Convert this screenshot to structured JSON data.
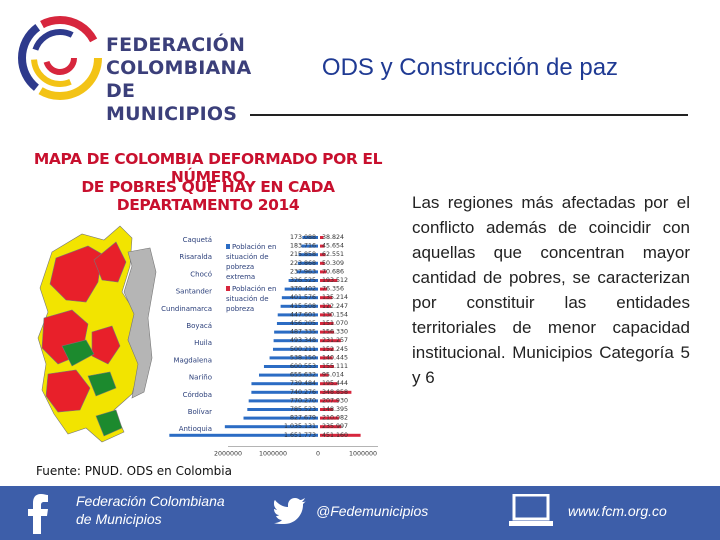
{
  "header": {
    "logo_lines": [
      "FEDERACIÓN",
      "COLOMBIANA",
      "DE MUNICIPIOS"
    ],
    "title": "ODS y Construcción de paz"
  },
  "figure": {
    "title_line1": "MAPA DE COLOMBIA DEFORMADO POR EL NÚMERO",
    "title_line2": "DE POBRES QUE HAY EN CADA DEPARTAMENTO 2014",
    "legend": {
      "poverty_label": "Población en situación de pobreza",
      "extreme_label": "Población en situación de pobreza extrema",
      "poverty_color": "#2b6cc4",
      "extreme_color": "#d7263d"
    },
    "departments": [
      "Caquetá",
      "Risaralda",
      "Chocó",
      "Santander",
      "Cundinamarca",
      "Boyacá",
      "Huila",
      "Magdalena",
      "Nariño",
      "Córdoba",
      "Bolívar",
      "Antioquia"
    ],
    "poverty_values": [
      "173.088",
      "183.716",
      "215.858",
      "223.868",
      "237.963",
      "326.525",
      "370.402",
      "401.576",
      "415.508",
      "447.601",
      "456.205",
      "487.335",
      "493.348",
      "500.211",
      "538.150",
      "600.553",
      "655.632",
      "739.484",
      "740.276",
      "770.270",
      "785.523",
      "827.679",
      "1.035.131",
      "1.651.773"
    ],
    "extreme_values": [
      "38.824",
      "45.654",
      "62.551",
      "50.309",
      "70.686",
      "193.512",
      "76.356",
      "135.214",
      "122.247",
      "130.154",
      "151.070",
      "156.330",
      "231.257",
      "152.245",
      "140.445",
      "155.111",
      "95.014",
      "195.444",
      "348.858",
      "207.930",
      "148.395",
      "210.082",
      "235.997",
      "451.160"
    ],
    "axis_ticks": [
      "2000000",
      "1000000",
      "0",
      "1000000"
    ],
    "map_colors": {
      "red": "#e8202a",
      "yellow": "#f2e400",
      "green": "#1c8a2e",
      "grey": "#b5b5b5"
    }
  },
  "body_text": "Las regiones más afectadas por el conflicto además de coincidir con aquellas que concentran mayor cantidad de pobres, se caracterizan por constituir las entidades territoriales de menor capacidad institucional. Municipios Categoría 5 y 6",
  "source": "Fuente: PNUD. ODS en Colombia",
  "footer": {
    "facebook_text": "Federación Colombiana de Municipios",
    "twitter_text": "@Fedemunicipios",
    "web_text": "www.fcm.org.co",
    "background": "#3d5ea9"
  }
}
